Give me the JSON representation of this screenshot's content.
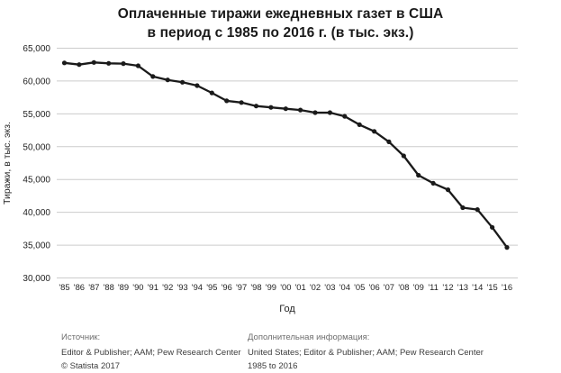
{
  "header": {
    "title_line1": "Оплаченные тиражи ежедневных газет в США",
    "title_line2": "в период с 1985 по 2016 г. (в тыс. экз.)"
  },
  "chart_data": {
    "type": "line",
    "title": "Оплаченные тиражи ежедневных газет в США в период с 1985 по 2016 г. (в тыс. экз.)",
    "xlabel": "Год",
    "ylabel": "Тиражи, в тыс. экз.",
    "ylim": [
      30000,
      65000
    ],
    "yticks": [
      65000,
      60000,
      55000,
      50000,
      45000,
      40000,
      35000,
      30000
    ],
    "grid": "horizontal",
    "legend": "none",
    "categories": [
      "'85",
      "'86",
      "'87",
      "'88",
      "'89",
      "'90",
      "'91",
      "'92",
      "'93",
      "'94",
      "'95",
      "'96",
      "'97",
      "'98",
      "'99",
      "'00",
      "'01",
      "'02",
      "'03",
      "'04",
      "'05",
      "'06",
      "'07",
      "'08",
      "'09",
      "'11",
      "'12",
      "'13",
      "'14",
      "'15",
      "'16"
    ],
    "values": [
      62766,
      62502,
      62826,
      62695,
      62649,
      62328,
      60687,
      60164,
      59812,
      59305,
      58193,
      56983,
      56728,
      56182,
      55979,
      55773,
      55578,
      55186,
      55185,
      54626,
      53345,
      52329,
      50742,
      48597,
      45653,
      44421,
      43433,
      40712,
      40420,
      37711,
      34657
    ],
    "line_color": "#1a1a1a",
    "point_color": "#1a1a1a",
    "grid_color": "#cccccc",
    "text_color": "#1f1f1f"
  },
  "footer": {
    "source_label": "Источник:",
    "source_value": "Editor & Publisher; AAM; Pew Research Center",
    "copyright": "© Statista 2017",
    "info_label": "Дополнительная информация:",
    "info_value": "United States; Editor & Publisher; AAM; Pew Research Center",
    "info_range": "1985 to 2016"
  }
}
